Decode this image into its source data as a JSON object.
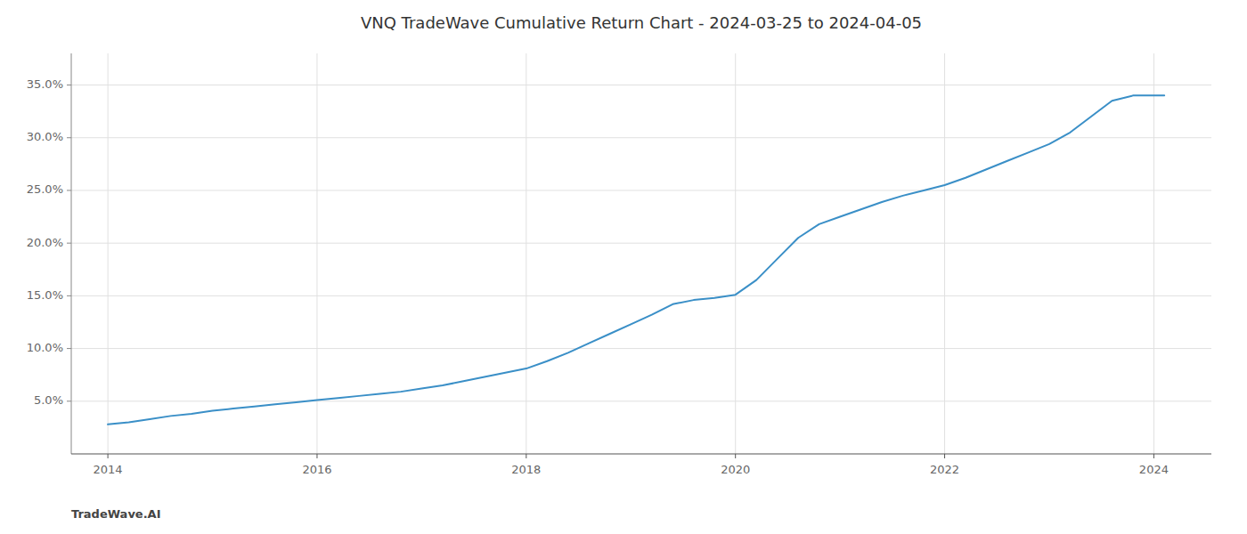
{
  "chart_data": {
    "type": "line",
    "title": "VNQ TradeWave Cumulative Return Chart - 2024-03-25 to 2024-04-05",
    "annotations": [
      "TradeWave.AI"
    ],
    "color": "#3a8fc7",
    "grid": true,
    "x": [
      2014.0,
      2014.2,
      2014.4,
      2014.6,
      2014.8,
      2015.0,
      2015.2,
      2015.4,
      2015.6,
      2015.8,
      2016.0,
      2016.2,
      2016.4,
      2016.6,
      2016.8,
      2017.0,
      2017.2,
      2017.4,
      2017.6,
      2017.8,
      2018.0,
      2018.2,
      2018.4,
      2018.6,
      2018.8,
      2019.0,
      2019.2,
      2019.4,
      2019.6,
      2019.8,
      2020.0,
      2020.2,
      2020.4,
      2020.6,
      2020.8,
      2021.0,
      2021.2,
      2021.4,
      2021.6,
      2021.8,
      2022.0,
      2022.2,
      2022.4,
      2022.6,
      2022.8,
      2023.0,
      2023.2,
      2023.4,
      2023.6,
      2023.8,
      2024.0,
      2024.1
    ],
    "values": [
      2.8,
      3.0,
      3.3,
      3.6,
      3.8,
      4.1,
      4.3,
      4.5,
      4.7,
      4.9,
      5.1,
      5.3,
      5.5,
      5.7,
      5.9,
      6.2,
      6.5,
      6.9,
      7.3,
      7.7,
      8.1,
      8.8,
      9.6,
      10.5,
      11.4,
      12.3,
      13.2,
      14.2,
      14.6,
      14.8,
      15.1,
      16.5,
      18.5,
      20.5,
      21.8,
      22.5,
      23.2,
      23.9,
      24.5,
      25.0,
      25.5,
      26.2,
      27.0,
      27.8,
      28.6,
      29.4,
      30.5,
      32.0,
      33.5,
      34.0,
      34.0,
      34.0
    ],
    "xlim": [
      2013.65,
      2024.55
    ],
    "ylim": [
      0,
      38
    ],
    "xticks": [
      2014,
      2016,
      2018,
      2020,
      2022,
      2024
    ],
    "yticks": [
      {
        "value": 5.0,
        "label": "5.0%"
      },
      {
        "value": 10.0,
        "label": "10.0%"
      },
      {
        "value": 15.0,
        "label": "15.0%"
      },
      {
        "value": 20.0,
        "label": "20.0%"
      },
      {
        "value": 25.0,
        "label": "25.0%"
      },
      {
        "value": 30.0,
        "label": "30.0%"
      },
      {
        "value": 35.0,
        "label": "35.0%"
      }
    ]
  }
}
